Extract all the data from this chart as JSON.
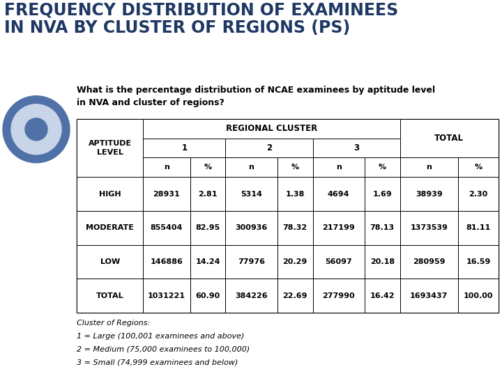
{
  "title_line1": "FREQUENCY DISTRIBUTION OF EXAMINEES",
  "title_line2": "IN NVA BY CLUSTER OF REGIONS (PS)",
  "subtitle": "What is the percentage distribution of NCAE examinees by aptitude level\nin NVA and cluster of regions?",
  "table_data": [
    [
      "HIGH",
      "28931",
      "2.81",
      "5314",
      "1.38",
      "4694",
      "1.69",
      "38939",
      "2.30"
    ],
    [
      "MODERATE",
      "855404",
      "82.95",
      "300936",
      "78.32",
      "217199",
      "78.13",
      "1373539",
      "81.11"
    ],
    [
      "LOW",
      "146886",
      "14.24",
      "77976",
      "20.29",
      "56097",
      "20.18",
      "280959",
      "16.59"
    ],
    [
      "TOTAL",
      "1031221",
      "60.90",
      "384226",
      "22.69",
      "277990",
      "16.42",
      "1693437",
      "100.00"
    ]
  ],
  "footnote_lines": [
    "Cluster of Regions:",
    "1 = Large (100,001 examinees and above)",
    "2 = Medium (75,000 examinees to 100,000)",
    "3 = Small (74,999 examinees and below)"
  ],
  "title_bg": "#FFFFFF",
  "title_text_color": "#1F3864",
  "content_bg": "#6080C0",
  "table_bg": "#FFFFFF",
  "circle_outer": "#5070A8",
  "circle_mid": "#C8D4E8",
  "circle_inner": "#5070A8",
  "title_fontsize": 17,
  "subtitle_fontsize": 9,
  "header_fontsize": 8,
  "data_fontsize": 8
}
